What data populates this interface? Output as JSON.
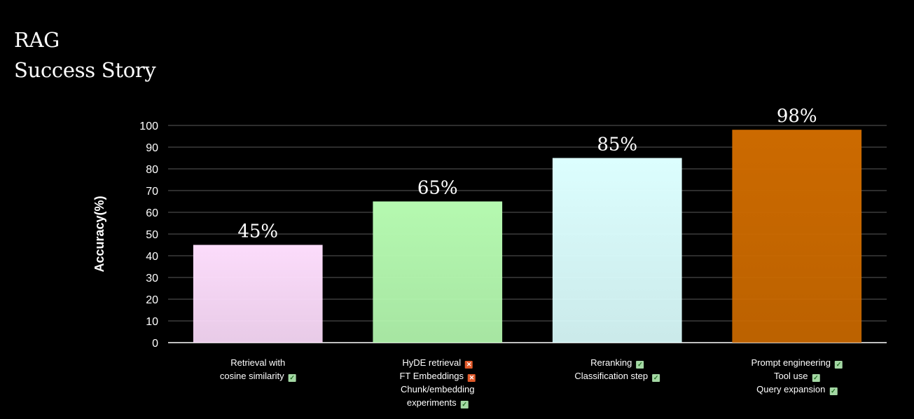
{
  "slide": {
    "title_lines": [
      "RAG",
      "Success Story"
    ]
  },
  "chart_data": {
    "type": "bar",
    "ylabel": "Accuracy(%)",
    "ylim": [
      0,
      100
    ],
    "yticks": [
      0,
      10,
      20,
      30,
      40,
      50,
      60,
      70,
      80,
      90,
      100
    ],
    "grid": true,
    "values": [
      45,
      65,
      85,
      98
    ],
    "value_labels": [
      "45%",
      "65%",
      "85%",
      "98%"
    ],
    "bar_colors": [
      "#fcdcfb",
      "#b5f9b0",
      "#dcfefe",
      "#cc6a00"
    ],
    "categories": [
      {
        "items": [
          {
            "text": "Retrieval with",
            "status": ""
          },
          {
            "text": "cosine similarity",
            "status": "check"
          }
        ]
      },
      {
        "items": [
          {
            "text": "HyDE retrieval",
            "status": "cross"
          },
          {
            "text": "FT Embeddings",
            "status": "cross"
          },
          {
            "text": "Chunk/embedding",
            "status": ""
          },
          {
            "text": "experiments",
            "status": "check"
          }
        ]
      },
      {
        "items": [
          {
            "text": "Reranking",
            "status": "check"
          },
          {
            "text": "Classification step",
            "status": "check"
          }
        ]
      },
      {
        "items": [
          {
            "text": "Prompt engineering",
            "status": "check"
          },
          {
            "text": "Tool use",
            "status": "check"
          },
          {
            "text": "Query expansion",
            "status": "check"
          }
        ]
      }
    ]
  }
}
